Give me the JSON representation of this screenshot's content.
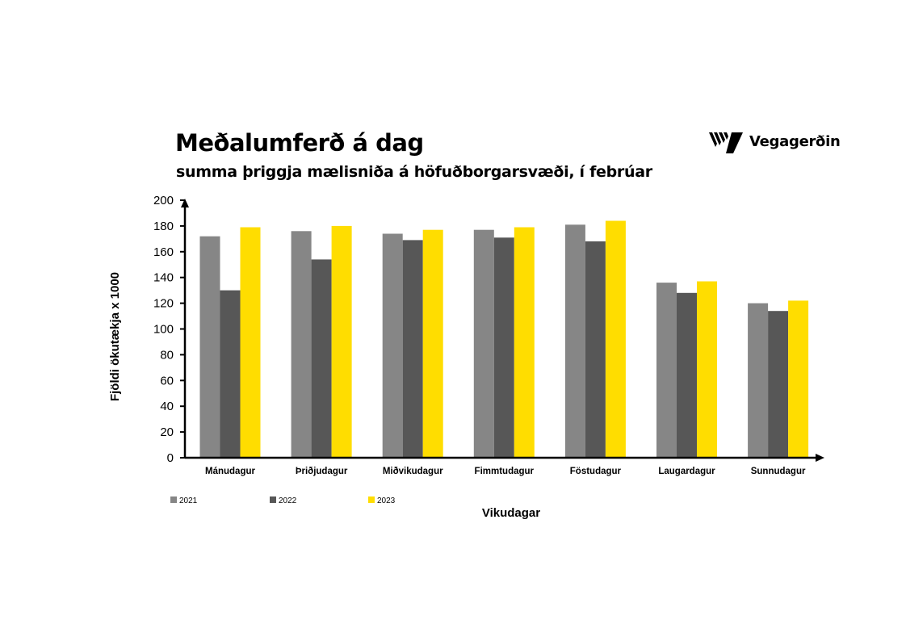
{
  "brand": {
    "name": "Vegagerðin",
    "logo_icon": "vegagerdin-stripes-logo-icon"
  },
  "chart_data": {
    "type": "bar",
    "title": "Meðalumferð á dag",
    "subtitle": "summa þriggja mælisniða á höfuðborgarsvæði, í febrúar",
    "xlabel": "Vikudagar",
    "ylabel": "Fjöldi ökutækja x 1000",
    "ylim": [
      0,
      200
    ],
    "yticks": [
      "0",
      "20",
      "40",
      "60",
      "80",
      "100",
      "120",
      "140",
      "160",
      "180",
      "200"
    ],
    "grid": false,
    "legend_position": "bottom-left",
    "categories": [
      "Mánudagur",
      "Þriðjudagur",
      "Miðvikudagur",
      "Fimmtudagur",
      "Föstudagur",
      "Laugardagur",
      "Sunnudagur"
    ],
    "series": [
      {
        "name": "2021",
        "color": "#868686",
        "values": [
          172,
          176,
          174,
          177,
          181,
          136,
          120
        ]
      },
      {
        "name": "2022",
        "color": "#575757",
        "values": [
          130,
          154,
          169,
          171,
          168,
          128,
          114
        ]
      },
      {
        "name": "2023",
        "color": "#ffdd00",
        "values": [
          179,
          180,
          177,
          179,
          184,
          137,
          122
        ]
      }
    ]
  }
}
